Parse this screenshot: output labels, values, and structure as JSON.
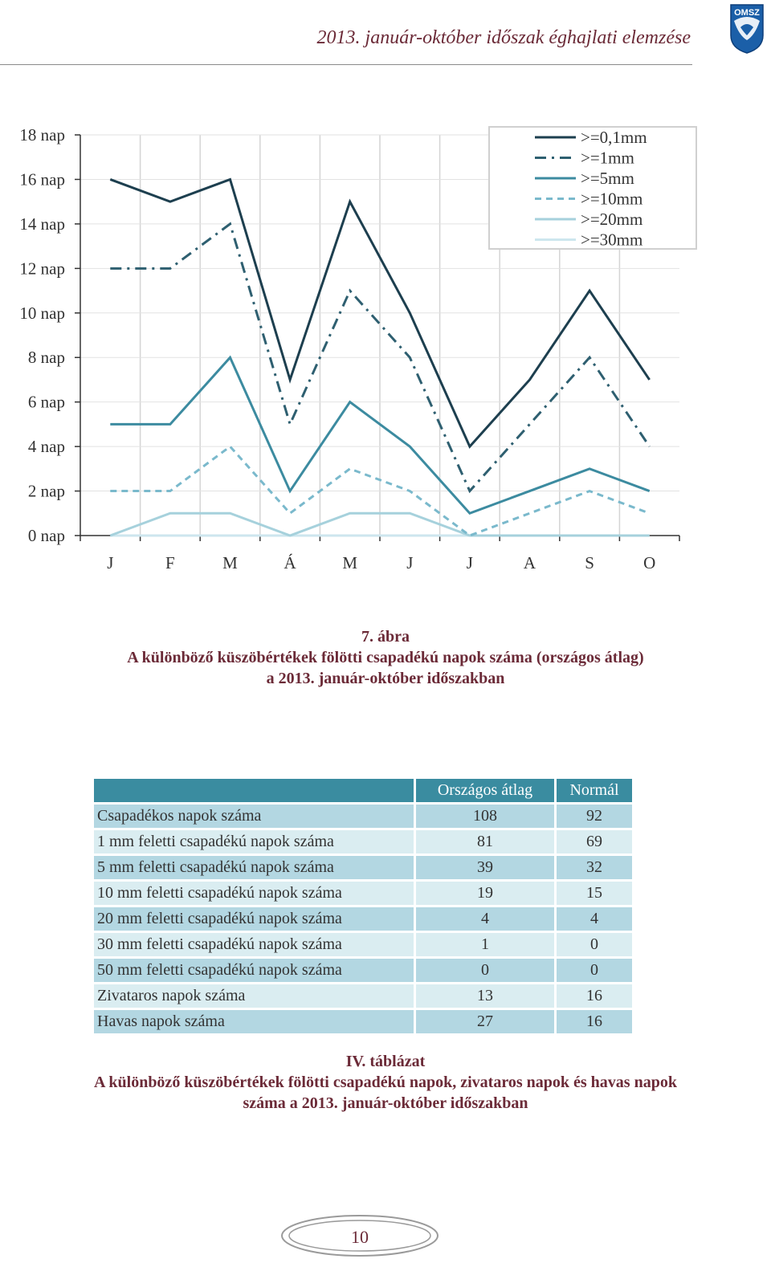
{
  "header": {
    "title": "2013. január-október időszak éghajlati elemzése",
    "logo_text": "OMSZ"
  },
  "chart_data": {
    "type": "line",
    "categories": [
      "J",
      "F",
      "M",
      "Á",
      "M",
      "J",
      "J",
      "A",
      "S",
      "O"
    ],
    "y_ticks": [
      "0 nap",
      "2 nap",
      "4 nap",
      "6 nap",
      "8 nap",
      "10 nap",
      "12 nap",
      "14 nap",
      "16 nap",
      "18 nap"
    ],
    "ylim": [
      0,
      18
    ],
    "legend_position": "top-right",
    "grid": true,
    "series": [
      {
        "name": ">=0,1mm",
        "values": [
          16,
          15,
          16,
          7,
          15,
          10,
          4,
          7,
          11,
          7
        ],
        "color": "#1d3f4f",
        "dash": "solid"
      },
      {
        "name": ">=1mm",
        "values": [
          12,
          12,
          14,
          5,
          11,
          8,
          2,
          5,
          8,
          4
        ],
        "color": "#2e5f70",
        "dash": "dashdot"
      },
      {
        "name": ">=5mm",
        "values": [
          5,
          5,
          8,
          2,
          6,
          4,
          1,
          2,
          3,
          2
        ],
        "color": "#3c8ba0",
        "dash": "solid"
      },
      {
        "name": ">=10mm",
        "values": [
          2,
          2,
          4,
          1,
          3,
          2,
          0,
          1,
          2,
          1
        ],
        "color": "#7ab9cc",
        "dash": "dashed"
      },
      {
        "name": ">=20mm",
        "values": [
          0,
          1,
          1,
          0,
          1,
          1,
          0,
          0,
          0,
          0
        ],
        "color": "#a6d1dc",
        "dash": "solid"
      },
      {
        "name": ">=30mm",
        "values": [
          0,
          0,
          0,
          0,
          0,
          0,
          0,
          0,
          0,
          0
        ],
        "color": "#cde6ee",
        "dash": "solid"
      }
    ]
  },
  "figure_caption": {
    "number": "7. ábra",
    "line1": "A különböző küszöbértékek fölötti csapadékú napok száma (országos átlag)",
    "line2": "a 2013. január-október időszakban"
  },
  "table": {
    "headers": [
      "",
      "Országos átlag",
      "Normál"
    ],
    "rows": [
      {
        "label": "Csapadékos napok száma",
        "avg": "108",
        "normal": "92"
      },
      {
        "label": "1 mm feletti csapadékú napok száma",
        "avg": "81",
        "normal": "69"
      },
      {
        "label": "5 mm feletti csapadékú napok száma",
        "avg": "39",
        "normal": "32"
      },
      {
        "label": "10 mm feletti csapadékú napok száma",
        "avg": "19",
        "normal": "15"
      },
      {
        "label": "20 mm feletti csapadékú napok száma",
        "avg": "4",
        "normal": "4"
      },
      {
        "label": "30 mm feletti csapadékú napok száma",
        "avg": "1",
        "normal": "0"
      },
      {
        "label": "50 mm feletti csapadékú napok száma",
        "avg": "0",
        "normal": "0"
      },
      {
        "label": "Zivataros napok száma",
        "avg": "13",
        "normal": "16"
      },
      {
        "label": "Havas napok száma",
        "avg": "27",
        "normal": "16"
      }
    ]
  },
  "table_caption": {
    "number": "IV. táblázat",
    "line1": "A különböző küszöbértékek fölötti csapadékú napok, zivataros napok és havas napok",
    "line2": "száma a 2013. január-október időszakban"
  },
  "footer": {
    "page_number": "10"
  }
}
